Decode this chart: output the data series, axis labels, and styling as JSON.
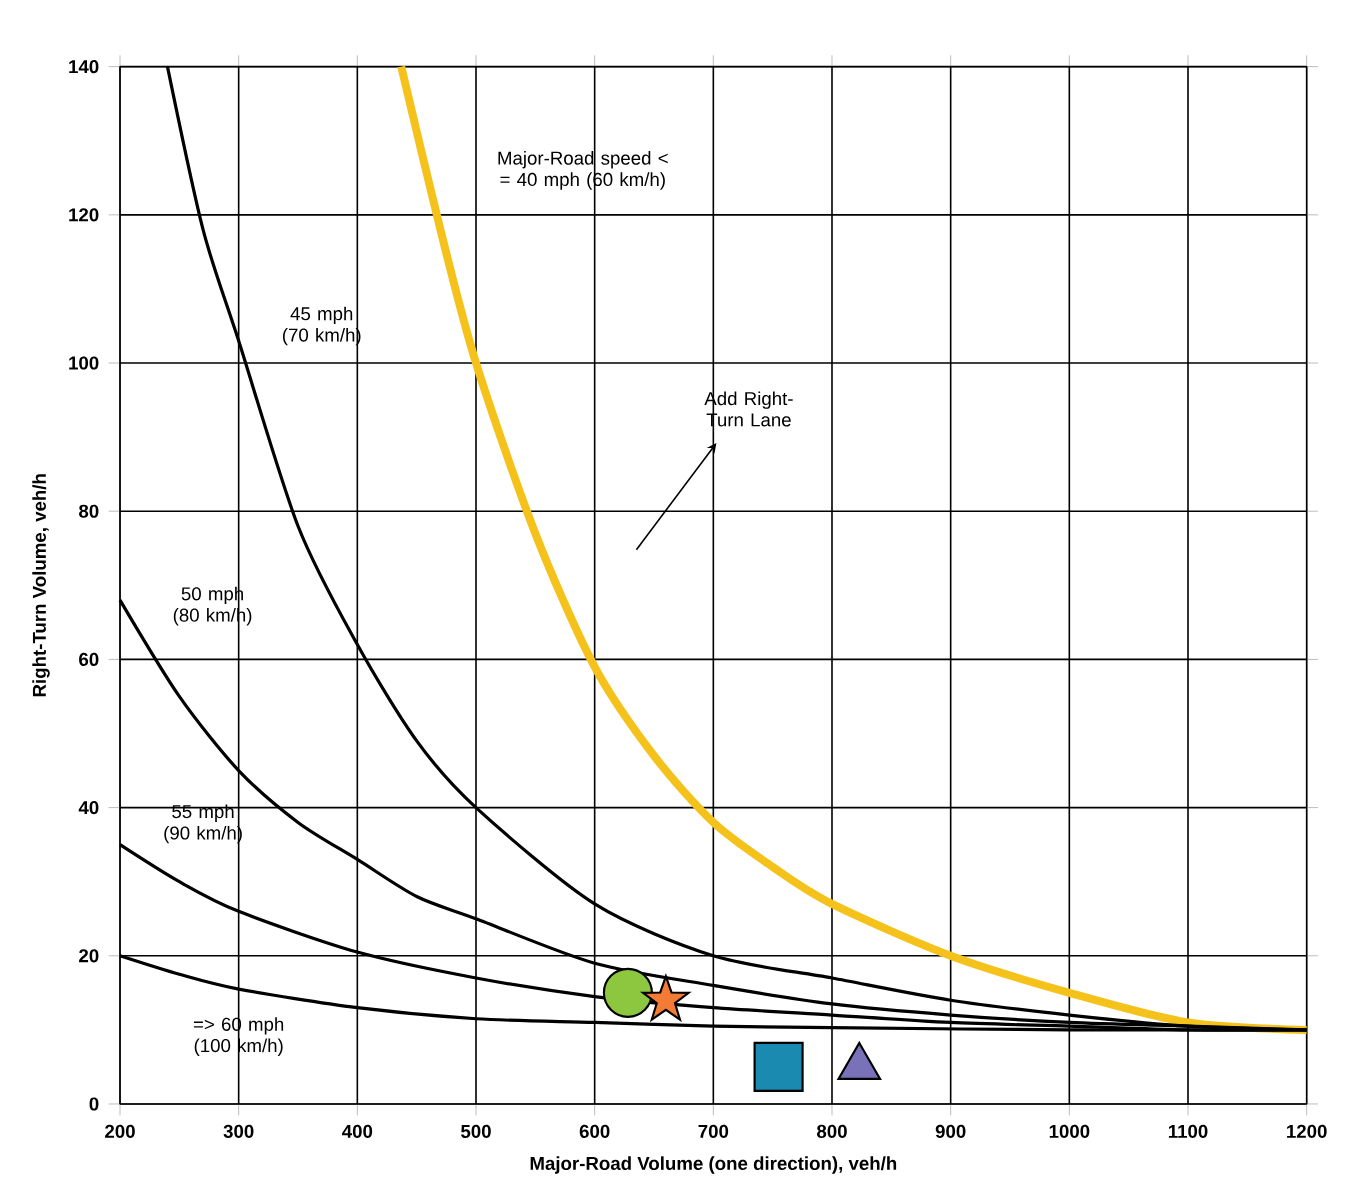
{
  "chart_data": {
    "type": "line",
    "xlabel": "Major-Road Volume (one direction), veh/h",
    "ylabel": "Right-Turn Volume, veh/h",
    "xlim": [
      200,
      1200
    ],
    "ylim": [
      0,
      140
    ],
    "xticks": [
      200,
      300,
      400,
      500,
      600,
      700,
      800,
      900,
      1000,
      1100,
      1200
    ],
    "yticks": [
      0,
      20,
      40,
      60,
      80,
      100,
      120,
      140
    ],
    "grid": true,
    "marker": "none",
    "series": [
      {
        "color": "#f5c21b",
        "x": [
          437,
          470,
          500,
          550,
          600,
          650,
          700,
          750,
          800,
          900,
          1000,
          1100,
          1200
        ],
        "values": [
          140,
          118,
          100,
          77,
          59,
          47,
          38,
          32,
          27,
          20,
          15,
          11,
          10
        ]
      },
      {
        "color": "#000000",
        "x": [
          240,
          270,
          300,
          350,
          400,
          450,
          500,
          600,
          700,
          800,
          900,
          1000,
          1100,
          1200
        ],
        "values": [
          140,
          118,
          103,
          78,
          62,
          49,
          40,
          27,
          20,
          17,
          14,
          12,
          10.5,
          10
        ]
      },
      {
        "color": "#000000",
        "x": [
          200,
          250,
          300,
          350,
          400,
          450,
          500,
          600,
          700,
          800,
          900,
          1000,
          1100,
          1200
        ],
        "values": [
          68,
          55,
          45,
          38,
          33,
          28,
          25,
          19,
          16,
          13.5,
          12,
          11,
          10.5,
          10
        ]
      },
      {
        "color": "#000000",
        "x": [
          200,
          250,
          300,
          400,
          500,
          600,
          700,
          800,
          900,
          1000,
          1100,
          1200
        ],
        "values": [
          35,
          30,
          26,
          20.5,
          17,
          14.5,
          13,
          12,
          11,
          10.5,
          10,
          10
        ]
      },
      {
        "color": "#000000",
        "x": [
          200,
          250,
          300,
          400,
          500,
          600,
          700,
          800,
          1000,
          1200
        ],
        "values": [
          20,
          17.5,
          15.5,
          13,
          11.5,
          11,
          10.5,
          10.3,
          10,
          10
        ]
      },
      {
        "type": "scatter",
        "marker": "circle",
        "color": "#8dc63f",
        "x": [
          628
        ],
        "values": [
          15
        ]
      },
      {
        "type": "scatter",
        "marker": "star",
        "color": "#f47b35",
        "x": [
          660
        ],
        "values": [
          14
        ]
      },
      {
        "type": "scatter",
        "marker": "square",
        "color": "#1a8ab0",
        "x": [
          755
        ],
        "values": [
          5
        ]
      },
      {
        "type": "scatter",
        "marker": "triangle",
        "color": "#7a72b8",
        "x": [
          823
        ],
        "values": [
          5
        ]
      }
    ],
    "annotations": [
      "Major-Road speed < = 40 mph (60 km/h)",
      "45 mph (70 km/h)",
      "Add Right-Turn Lane",
      "50 mph (80 km/h)",
      "55 mph (90 km/h)",
      "=> 60 mph (100 km/h)"
    ]
  }
}
